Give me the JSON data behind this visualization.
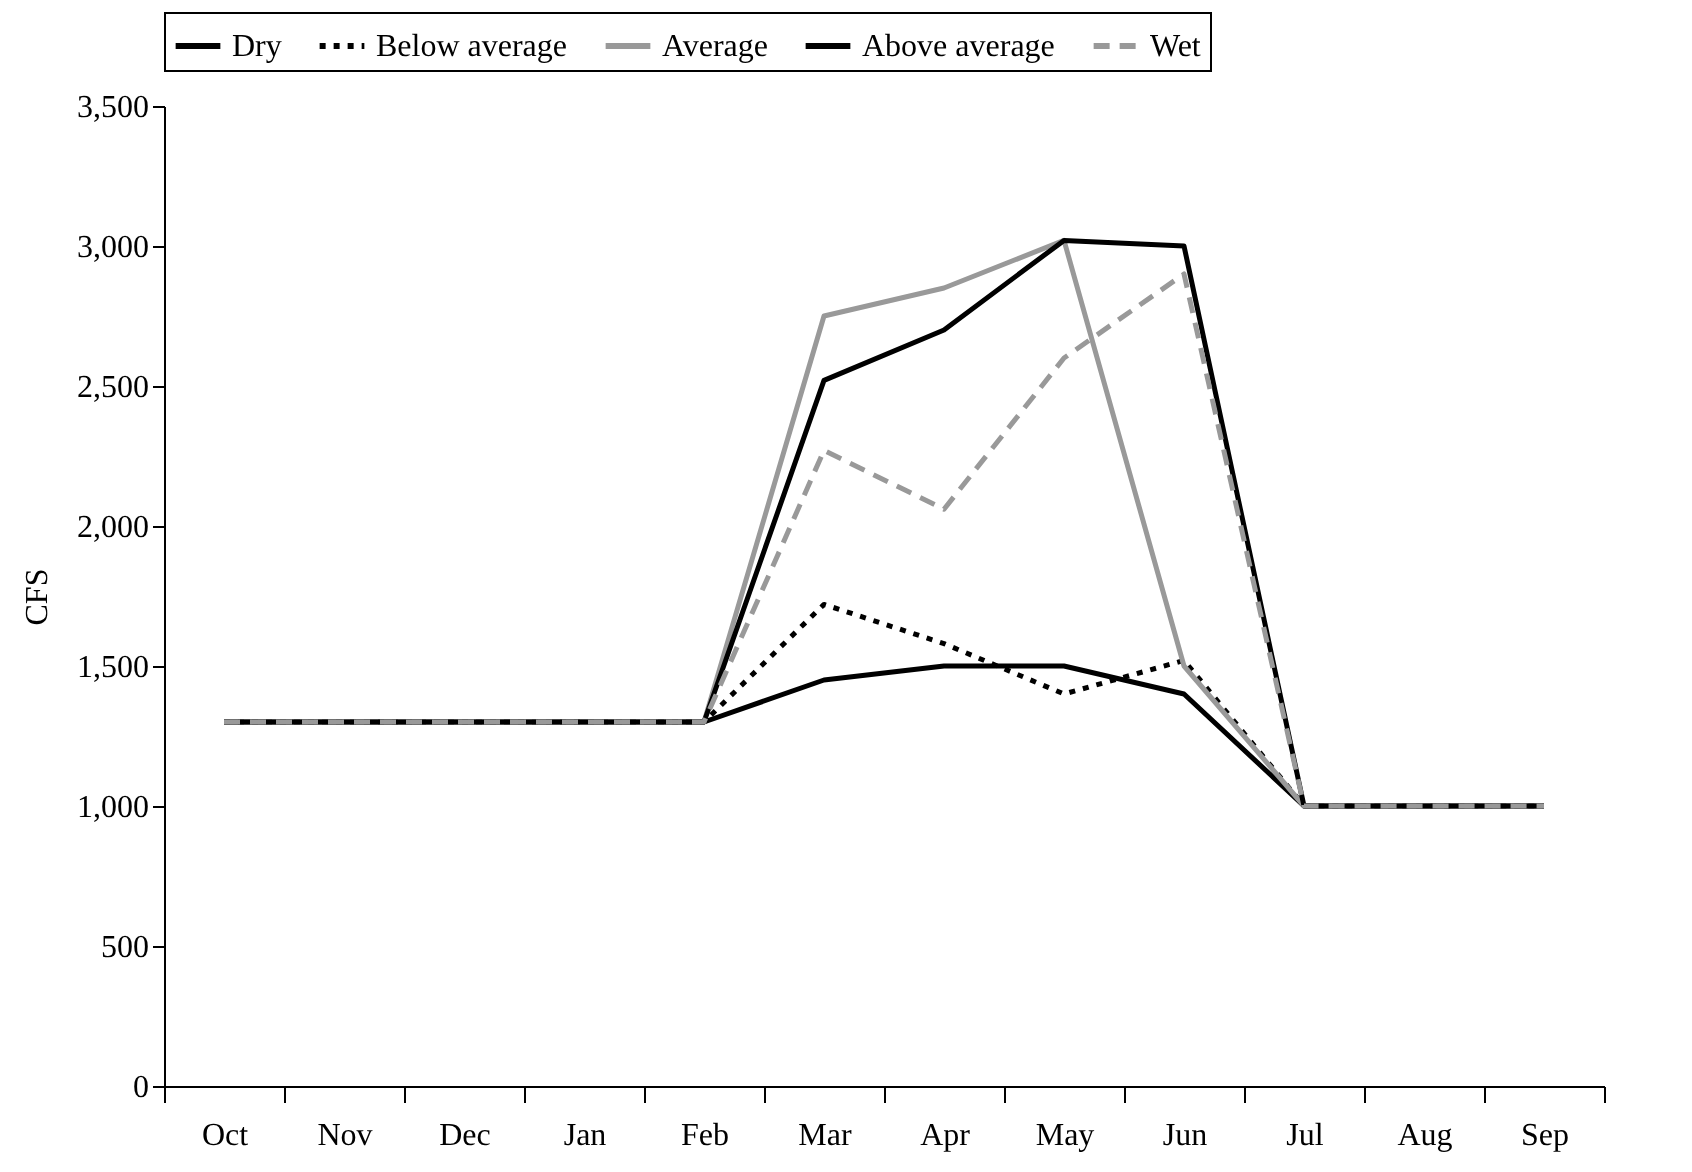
{
  "chart_data": {
    "type": "line",
    "ylabel": "CFS",
    "categories": [
      "Oct",
      "Nov",
      "Dec",
      "Jan",
      "Feb",
      "Mar",
      "Apr",
      "May",
      "Jun",
      "Jul",
      "Aug",
      "Sep"
    ],
    "series": [
      {
        "name": "Dry",
        "color": "#000000",
        "line_style": "solid",
        "values": [
          1300,
          1300,
          1300,
          1300,
          1300,
          1450,
          1500,
          1500,
          1400,
          1000,
          1000,
          1000
        ]
      },
      {
        "name": "Below average",
        "color": "#000000",
        "line_style": "dotted",
        "values": [
          1300,
          1300,
          1300,
          1300,
          1300,
          1720,
          1580,
          1400,
          1520,
          1000,
          1000,
          1000
        ]
      },
      {
        "name": "Average",
        "color": "#999999",
        "line_style": "solid",
        "values": [
          1300,
          1300,
          1300,
          1300,
          1300,
          2750,
          2850,
          3020,
          1500,
          1000,
          1000,
          1000
        ]
      },
      {
        "name": "Above average",
        "color": "#000000",
        "line_style": "solid",
        "values": [
          1300,
          1300,
          1300,
          1300,
          1300,
          2520,
          2700,
          3020,
          3000,
          1000,
          1000,
          1000
        ]
      },
      {
        "name": "Wet",
        "color": "#999999",
        "line_style": "dashed",
        "values": [
          1300,
          1300,
          1300,
          1300,
          1300,
          2270,
          2060,
          2600,
          2900,
          1000,
          1000,
          1000
        ]
      }
    ],
    "ylim": [
      0,
      3500
    ],
    "yticks": [
      0,
      {
        "value": 500,
        "label": "500"
      },
      {
        "value": 1000,
        "label": "1,000"
      },
      {
        "value": 1500,
        "label": "1,500"
      },
      {
        "value": 2000,
        "label": "2,000"
      },
      {
        "value": 2500,
        "label": "2,500"
      },
      {
        "value": 3000,
        "label": "3,000"
      },
      {
        "value": 3500,
        "label": "3,500"
      }
    ],
    "grid": false,
    "legend": "top",
    "marker": "none"
  }
}
